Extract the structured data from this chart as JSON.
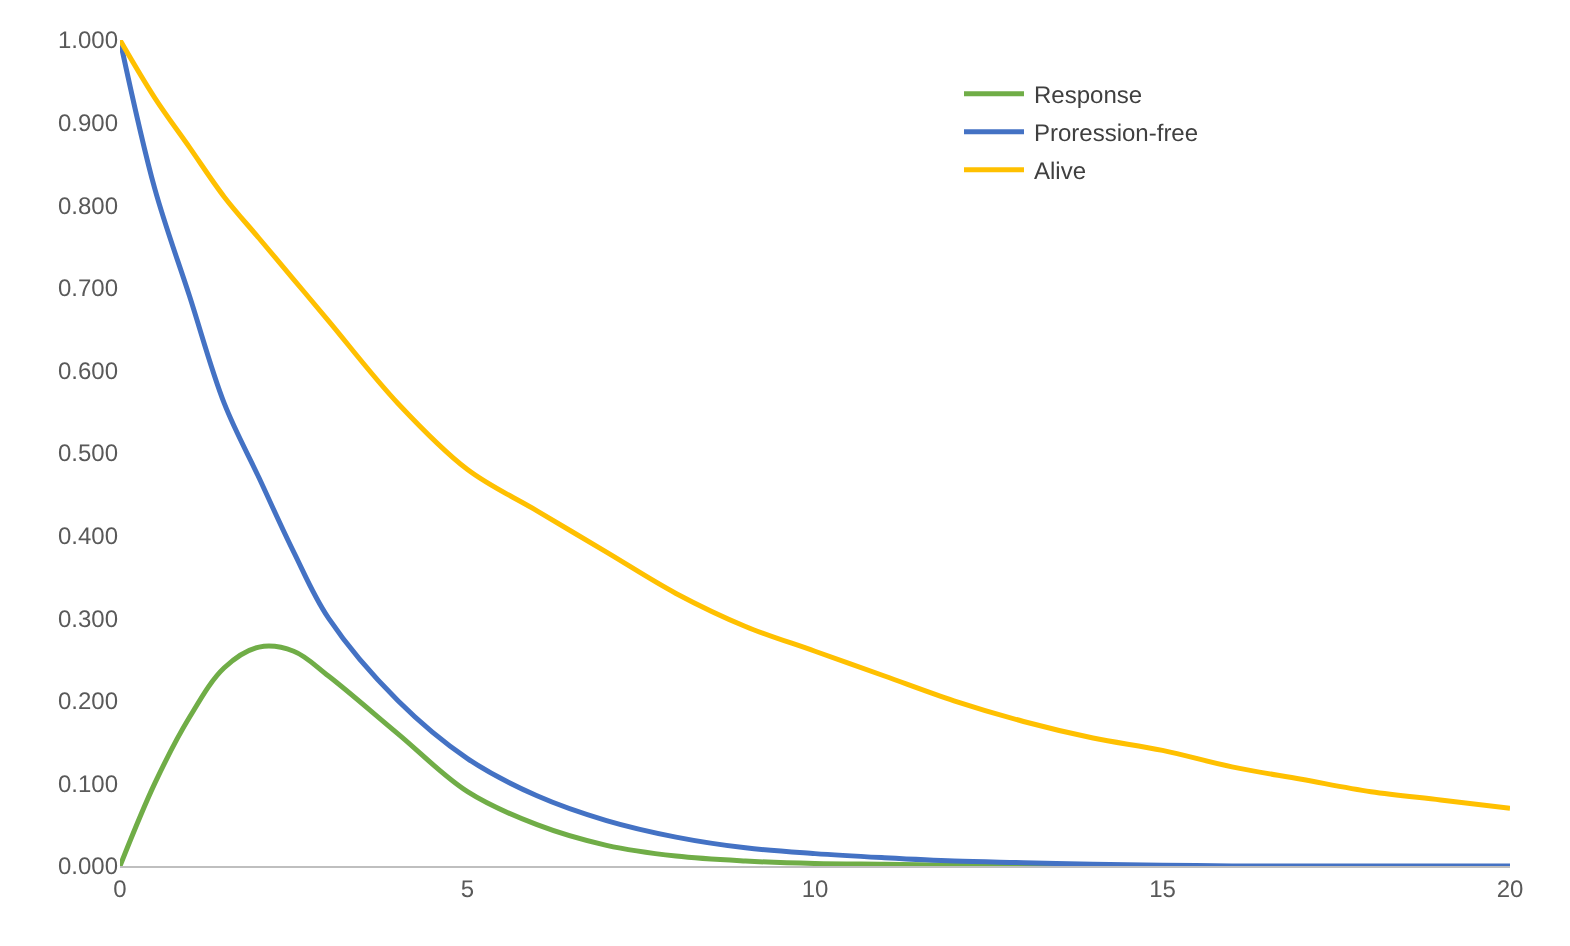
{
  "chart_data": {
    "type": "line",
    "x": [
      0,
      0.5,
      1,
      1.5,
      2,
      2.5,
      3,
      4,
      5,
      6,
      7,
      8,
      9,
      10,
      11,
      12,
      13,
      14,
      15,
      16,
      17,
      18,
      19,
      20
    ],
    "series": [
      {
        "name": "Response",
        "color": "#70ad47",
        "values": [
          0,
          0.1,
          0.18,
          0.24,
          0.265,
          0.26,
          0.23,
          0.16,
          0.09,
          0.05,
          0.025,
          0.012,
          0.006,
          0.003,
          0.002,
          0.001,
          0,
          0,
          null,
          null,
          null,
          null,
          null,
          null
        ]
      },
      {
        "name": "Proression-free",
        "color": "#4472c4",
        "values": [
          1,
          0.82,
          0.69,
          0.56,
          0.47,
          0.38,
          0.3,
          0.2,
          0.13,
          0.085,
          0.055,
          0.035,
          0.022,
          0.015,
          0.01,
          0.006,
          0.004,
          0.002,
          0.001,
          0,
          0,
          0,
          0,
          0
        ]
      },
      {
        "name": "Alive",
        "color": "#ffc000",
        "values": [
          1,
          0.93,
          0.87,
          0.81,
          0.76,
          0.71,
          0.66,
          0.56,
          0.48,
          0.43,
          0.38,
          0.33,
          0.29,
          0.26,
          0.23,
          0.2,
          0.175,
          0.155,
          0.14,
          0.12,
          0.105,
          0.09,
          0.08,
          0.07
        ]
      }
    ],
    "xlim": [
      0,
      20
    ],
    "xticks": [
      0,
      5,
      10,
      15,
      20
    ],
    "ylim": [
      0,
      1
    ],
    "yticks": [
      {
        "value": 0,
        "label": "0.000"
      },
      {
        "value": 0.1,
        "label": "0.100"
      },
      {
        "value": 0.2,
        "label": "0.200"
      },
      {
        "value": 0.3,
        "label": "0.300"
      },
      {
        "value": 0.4,
        "label": "0.400"
      },
      {
        "value": 0.5,
        "label": "0.500"
      },
      {
        "value": 0.6,
        "label": "0.600"
      },
      {
        "value": 0.7,
        "label": "0.700"
      },
      {
        "value": 0.8,
        "label": "0.800"
      },
      {
        "value": 0.9,
        "label": "0.900"
      },
      {
        "value": 1,
        "label": "1.000"
      }
    ],
    "legend": "top right",
    "marker": "none",
    "line_style": "solid"
  }
}
